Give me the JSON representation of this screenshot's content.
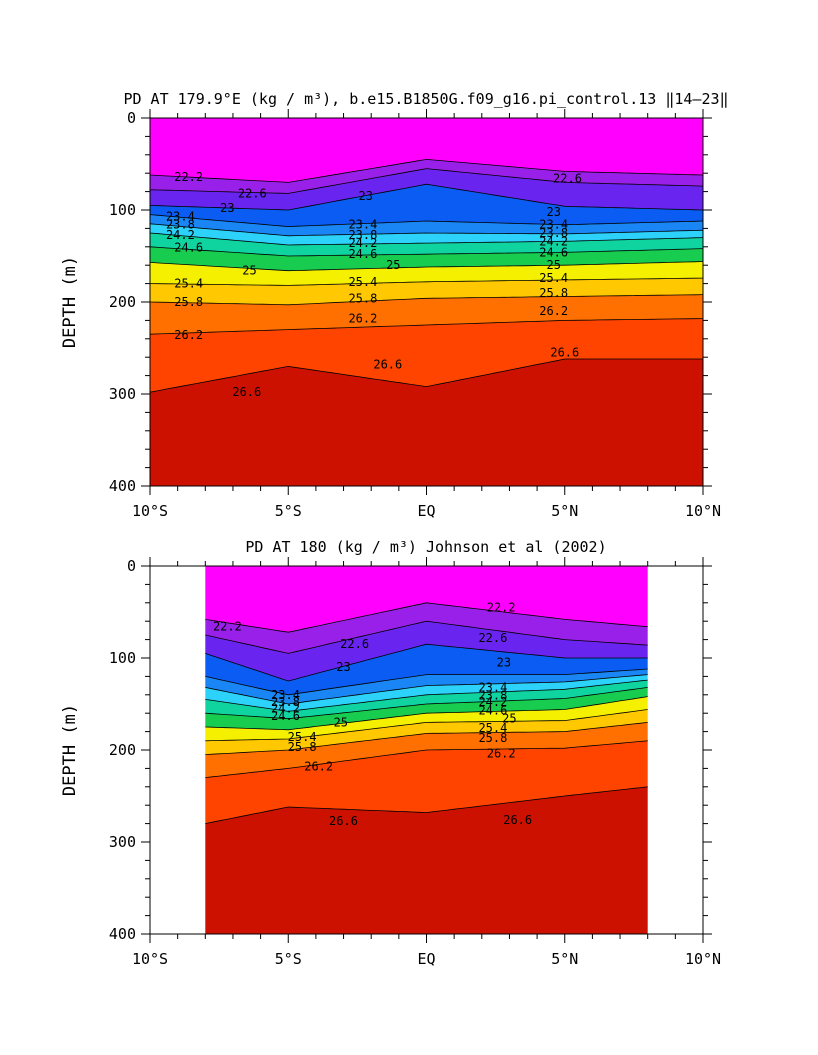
{
  "chart_data": [
    {
      "type": "heatmap",
      "title": "PD AT 179.9°E (kg / m³), b.e15.B1850G.f09_g16.pi_control.13 ‖14–23‖",
      "xlabel": "",
      "ylabel": "DEPTH (m)",
      "xlim": [
        -10,
        10
      ],
      "ylim": [
        400,
        0
      ],
      "x_ticks": [
        "10°S",
        "5°S",
        "EQ",
        "5°N",
        "10°N"
      ],
      "y_ticks": [
        "0",
        "100",
        "200",
        "300",
        "400"
      ],
      "data_extent": [
        -10,
        10
      ],
      "contour_levels": [
        22.2,
        22.6,
        23,
        23.4,
        23.8,
        24.2,
        24.6,
        25,
        25.4,
        25.8,
        26.2,
        26.6
      ],
      "isopycnal_depths_m": [
        {
          "level": 22.2,
          "x": [
            -10,
            -5,
            0,
            5,
            10
          ],
          "depth": [
            62,
            70,
            45,
            58,
            62
          ]
        },
        {
          "level": 22.6,
          "x": [
            -10,
            -5,
            0,
            5,
            10
          ],
          "depth": [
            78,
            82,
            55,
            70,
            74
          ]
        },
        {
          "level": 23,
          "x": [
            -10,
            -5,
            0,
            5,
            10
          ],
          "depth": [
            95,
            100,
            72,
            96,
            100
          ]
        },
        {
          "level": 23.4,
          "x": [
            -10,
            -5,
            0,
            5,
            10
          ],
          "depth": [
            105,
            118,
            112,
            116,
            112
          ]
        },
        {
          "level": 23.8,
          "x": [
            -10,
            -5,
            0,
            5,
            10
          ],
          "depth": [
            115,
            128,
            125,
            126,
            122
          ]
        },
        {
          "level": 24.2,
          "x": [
            -10,
            -5,
            0,
            5,
            10
          ],
          "depth": [
            125,
            138,
            136,
            134,
            130
          ]
        },
        {
          "level": 24.6,
          "x": [
            -10,
            -5,
            0,
            5,
            10
          ],
          "depth": [
            140,
            150,
            148,
            146,
            142
          ]
        },
        {
          "level": 25,
          "x": [
            -10,
            -5,
            0,
            5,
            10
          ],
          "depth": [
            157,
            166,
            162,
            160,
            156
          ]
        },
        {
          "level": 25.4,
          "x": [
            -10,
            -5,
            0,
            5,
            10
          ],
          "depth": [
            180,
            182,
            178,
            176,
            174
          ]
        },
        {
          "level": 25.8,
          "x": [
            -10,
            -5,
            0,
            5,
            10
          ],
          "depth": [
            200,
            203,
            196,
            194,
            192
          ]
        },
        {
          "level": 26.2,
          "x": [
            -10,
            -5,
            0,
            5,
            10
          ],
          "depth": [
            235,
            230,
            225,
            220,
            218
          ]
        },
        {
          "level": 26.6,
          "x": [
            -10,
            -5,
            0,
            5,
            10
          ],
          "depth": [
            298,
            270,
            292,
            262,
            262
          ]
        }
      ],
      "contour_labels": [
        {
          "text": "22.2",
          "x": -8.6,
          "y": 64
        },
        {
          "text": "22.6",
          "x": -6.3,
          "y": 82
        },
        {
          "text": "23",
          "x": -7.2,
          "y": 98
        },
        {
          "text": "23.4",
          "x": -8.9,
          "y": 107
        },
        {
          "text": "23.8",
          "x": -8.9,
          "y": 116
        },
        {
          "text": "24.2",
          "x": -8.9,
          "y": 127
        },
        {
          "text": "24.6",
          "x": -8.6,
          "y": 141
        },
        {
          "text": "25",
          "x": -6.4,
          "y": 166
        },
        {
          "text": "25.4",
          "x": -8.6,
          "y": 180
        },
        {
          "text": "25.8",
          "x": -8.6,
          "y": 200
        },
        {
          "text": "26.2",
          "x": -8.6,
          "y": 236
        },
        {
          "text": "26.6",
          "x": -6.5,
          "y": 298
        },
        {
          "text": "23",
          "x": -2.2,
          "y": 85
        },
        {
          "text": "23.4",
          "x": -2.3,
          "y": 116
        },
        {
          "text": "23.8",
          "x": -2.3,
          "y": 127
        },
        {
          "text": "24.2",
          "x": -2.3,
          "y": 136
        },
        {
          "text": "24.6",
          "x": -2.3,
          "y": 148
        },
        {
          "text": "25",
          "x": -1.2,
          "y": 160
        },
        {
          "text": "25.4",
          "x": -2.3,
          "y": 178
        },
        {
          "text": "25.8",
          "x": -2.3,
          "y": 196
        },
        {
          "text": "26.2",
          "x": -2.3,
          "y": 218
        },
        {
          "text": "26.6",
          "x": -1.4,
          "y": 268
        },
        {
          "text": "22.6",
          "x": 5.1,
          "y": 66
        },
        {
          "text": "23",
          "x": 4.6,
          "y": 102
        },
        {
          "text": "23.4",
          "x": 4.6,
          "y": 116
        },
        {
          "text": "23.8",
          "x": 4.6,
          "y": 125
        },
        {
          "text": "24.2",
          "x": 4.6,
          "y": 134
        },
        {
          "text": "24.6",
          "x": 4.6,
          "y": 146
        },
        {
          "text": "25",
          "x": 4.6,
          "y": 160
        },
        {
          "text": "25.4",
          "x": 4.6,
          "y": 174
        },
        {
          "text": "25.8",
          "x": 4.6,
          "y": 190
        },
        {
          "text": "26.2",
          "x": 4.6,
          "y": 210
        },
        {
          "text": "26.6",
          "x": 5.0,
          "y": 255
        }
      ]
    },
    {
      "type": "heatmap",
      "title": "PD AT 180 (kg / m³) Johnson et al (2002)",
      "xlabel": "",
      "ylabel": "DEPTH (m)",
      "xlim": [
        -10,
        10
      ],
      "ylim": [
        400,
        0
      ],
      "x_ticks": [
        "10°S",
        "5°S",
        "EQ",
        "5°N",
        "10°N"
      ],
      "y_ticks": [
        "0",
        "100",
        "200",
        "300",
        "400"
      ],
      "data_extent": [
        -8,
        8
      ],
      "contour_levels": [
        22.2,
        22.6,
        23,
        23.4,
        23.8,
        24.2,
        24.6,
        25,
        25.4,
        25.8,
        26.2,
        26.6
      ],
      "isopycnal_depths_m": [
        {
          "level": 22.2,
          "x": [
            -8,
            -5,
            0,
            5,
            8
          ],
          "depth": [
            58,
            72,
            40,
            58,
            66
          ]
        },
        {
          "level": 22.6,
          "x": [
            -8,
            -5,
            0,
            5,
            8
          ],
          "depth": [
            75,
            95,
            60,
            80,
            86
          ]
        },
        {
          "level": 23,
          "x": [
            -8,
            -5,
            0,
            5,
            8
          ],
          "depth": [
            95,
            125,
            85,
            100,
            100
          ]
        },
        {
          "level": 23.4,
          "x": [
            -8,
            -5,
            0,
            5,
            8
          ],
          "depth": [
            120,
            140,
            118,
            118,
            112
          ]
        },
        {
          "level": 23.8,
          "x": [
            -8,
            -5,
            0,
            5,
            8
          ],
          "depth": [
            132,
            150,
            130,
            126,
            118
          ]
        },
        {
          "level": 24.2,
          "x": [
            -8,
            -5,
            0,
            5,
            8
          ],
          "depth": [
            145,
            158,
            140,
            134,
            124
          ]
        },
        {
          "level": 24.6,
          "x": [
            -8,
            -5,
            0,
            5,
            8
          ],
          "depth": [
            160,
            166,
            150,
            144,
            132
          ]
        },
        {
          "level": 25,
          "x": [
            -8,
            -5,
            0,
            5,
            8
          ],
          "depth": [
            175,
            178,
            160,
            156,
            142
          ]
        },
        {
          "level": 25.4,
          "x": [
            -8,
            -5,
            0,
            5,
            8
          ],
          "depth": [
            190,
            188,
            170,
            168,
            156
          ]
        },
        {
          "level": 25.8,
          "x": [
            -8,
            -5,
            0,
            5,
            8
          ],
          "depth": [
            205,
            200,
            182,
            180,
            170
          ]
        },
        {
          "level": 26.2,
          "x": [
            -8,
            -5,
            0,
            5,
            8
          ],
          "depth": [
            230,
            220,
            200,
            198,
            190
          ]
        },
        {
          "level": 26.6,
          "x": [
            -8,
            -5,
            0,
            5,
            8
          ],
          "depth": [
            280,
            262,
            268,
            250,
            240
          ]
        }
      ],
      "contour_labels": [
        {
          "text": "22.2",
          "x": -7.2,
          "y": 66
        },
        {
          "text": "22.6",
          "x": -2.6,
          "y": 85
        },
        {
          "text": "23",
          "x": -3.0,
          "y": 110
        },
        {
          "text": "23.4",
          "x": -5.1,
          "y": 140
        },
        {
          "text": "23.8",
          "x": -5.1,
          "y": 148
        },
        {
          "text": "24.2",
          "x": -5.1,
          "y": 155
        },
        {
          "text": "24.6",
          "x": -5.1,
          "y": 163
        },
        {
          "text": "25",
          "x": -3.1,
          "y": 170
        },
        {
          "text": "25.4",
          "x": -4.5,
          "y": 186
        },
        {
          "text": "25.8",
          "x": -4.5,
          "y": 197
        },
        {
          "text": "26.2",
          "x": -3.9,
          "y": 218
        },
        {
          "text": "26.6",
          "x": -3.0,
          "y": 277
        },
        {
          "text": "22.2",
          "x": 2.7,
          "y": 45
        },
        {
          "text": "22.6",
          "x": 2.4,
          "y": 78
        },
        {
          "text": "23",
          "x": 2.8,
          "y": 105
        },
        {
          "text": "23.4",
          "x": 2.4,
          "y": 132
        },
        {
          "text": "23.8",
          "x": 2.4,
          "y": 141
        },
        {
          "text": "24.2",
          "x": 2.4,
          "y": 148
        },
        {
          "text": "24.6",
          "x": 2.4,
          "y": 157
        },
        {
          "text": "25",
          "x": 3.0,
          "y": 166
        },
        {
          "text": "25.4",
          "x": 2.4,
          "y": 176
        },
        {
          "text": "25.8",
          "x": 2.4,
          "y": 187
        },
        {
          "text": "26.2",
          "x": 2.7,
          "y": 204
        },
        {
          "text": "26.6",
          "x": 3.3,
          "y": 276
        }
      ]
    }
  ]
}
